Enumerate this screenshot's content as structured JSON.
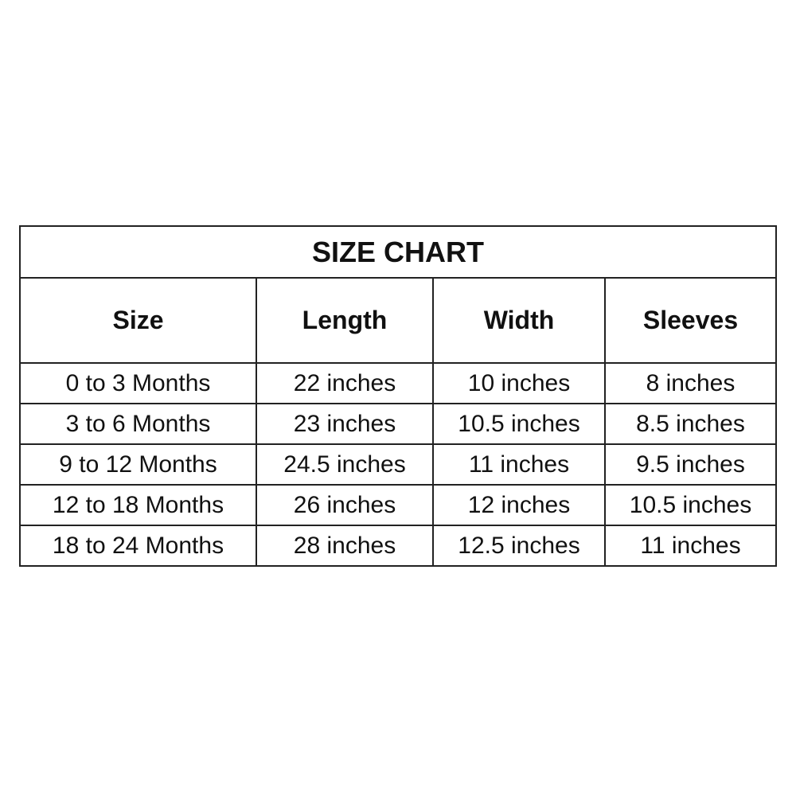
{
  "title": "SIZE CHART",
  "headers": [
    "Size",
    "Length",
    "Width",
    "Sleeves"
  ],
  "rows": [
    [
      "0 to 3 Months",
      "22 inches",
      "10 inches",
      "8 inches"
    ],
    [
      "3 to 6 Months",
      "23 inches",
      "10.5 inches",
      "8.5 inches"
    ],
    [
      "9 to 12 Months",
      "24.5 inches",
      "11 inches",
      "9.5 inches"
    ],
    [
      "12 to 18 Months",
      "26 inches",
      "12 inches",
      "10.5 inches"
    ],
    [
      "18 to 24 Months",
      "28 inches",
      "12.5 inches",
      "11 inches"
    ]
  ]
}
